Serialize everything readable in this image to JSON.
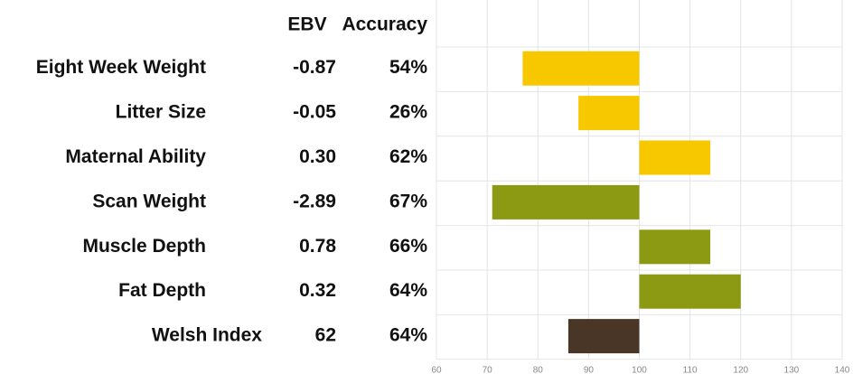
{
  "chart_data": {
    "type": "bar",
    "orientation": "horizontal",
    "columns": [
      "EBV",
      "Accuracy"
    ],
    "categories": [
      "Eight Week Weight",
      "Litter Size",
      "Maternal Ability",
      "Scan Weight",
      "Muscle Depth",
      "Fat Depth",
      "Welsh Index"
    ],
    "ebv": [
      "-0.87",
      "-0.05",
      "0.30",
      "-2.89",
      "0.78",
      "0.32",
      "62"
    ],
    "accuracy": [
      "54%",
      "26%",
      "62%",
      "67%",
      "66%",
      "64%",
      "64%"
    ],
    "values": [
      77,
      88,
      114,
      71,
      114,
      120,
      86
    ],
    "colors": [
      "#f7c800",
      "#f7c800",
      "#f7c800",
      "#8b9a12",
      "#8b9a12",
      "#8b9a12",
      "#4a3626"
    ],
    "base": 100,
    "xlim": [
      60,
      140
    ],
    "xticks": [
      60,
      70,
      80,
      90,
      100,
      110,
      120,
      130,
      140
    ],
    "grid": true
  }
}
